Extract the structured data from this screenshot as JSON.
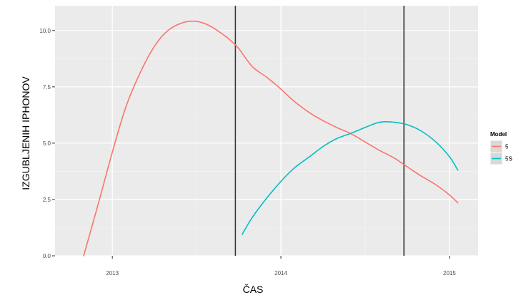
{
  "chart_data": {
    "type": "line",
    "xlabel": "ČAS",
    "ylabel": "IZGUBLJENIH IPHONOV",
    "xlim": [
      2012.66,
      2015.17
    ],
    "ylim": [
      0,
      11.1
    ],
    "x_ticks": [
      {
        "value": 2013,
        "label": "2013"
      },
      {
        "value": 2014,
        "label": "2014"
      },
      {
        "value": 2015,
        "label": "2015"
      }
    ],
    "y_ticks": [
      {
        "value": 0,
        "label": "0.0"
      },
      {
        "value": 2.5,
        "label": "2.5"
      },
      {
        "value": 5,
        "label": "5.0"
      },
      {
        "value": 7.5,
        "label": "7.5"
      },
      {
        "value": 10,
        "label": "10.0"
      }
    ],
    "grid": true,
    "legend_position": "right",
    "legend_title": "Model",
    "vlines": [
      2013.73,
      2014.73
    ],
    "series": [
      {
        "name": "5",
        "color": "#F8766D",
        "x": [
          2012.83,
          2012.92,
          2013.0,
          2013.08,
          2013.17,
          2013.25,
          2013.33,
          2013.42,
          2013.5,
          2013.58,
          2013.67,
          2013.71,
          2013.75,
          2013.83,
          2013.92,
          2014.0,
          2014.08,
          2014.17,
          2014.25,
          2014.33,
          2014.42,
          2014.5,
          2014.58,
          2014.67,
          2014.75,
          2014.83,
          2014.92,
          2015.0,
          2015.05
        ],
        "y": [
          0.0,
          2.4,
          4.6,
          6.6,
          8.2,
          9.3,
          10.0,
          10.35,
          10.4,
          10.2,
          9.75,
          9.5,
          9.2,
          8.4,
          7.9,
          7.4,
          6.85,
          6.35,
          6.0,
          5.7,
          5.4,
          5.05,
          4.7,
          4.35,
          3.95,
          3.55,
          3.15,
          2.7,
          2.35
        ]
      },
      {
        "name": "5S",
        "color": "#00BFC4",
        "x": [
          2013.77,
          2013.83,
          2013.92,
          2014.0,
          2014.08,
          2014.17,
          2014.25,
          2014.33,
          2014.42,
          2014.5,
          2014.58,
          2014.64,
          2014.7,
          2014.75,
          2014.83,
          2014.92,
          2015.0,
          2015.05
        ],
        "y": [
          0.95,
          1.7,
          2.6,
          3.3,
          3.9,
          4.4,
          4.85,
          5.2,
          5.45,
          5.7,
          5.92,
          5.95,
          5.9,
          5.82,
          5.55,
          5.05,
          4.4,
          3.8
        ]
      }
    ]
  }
}
